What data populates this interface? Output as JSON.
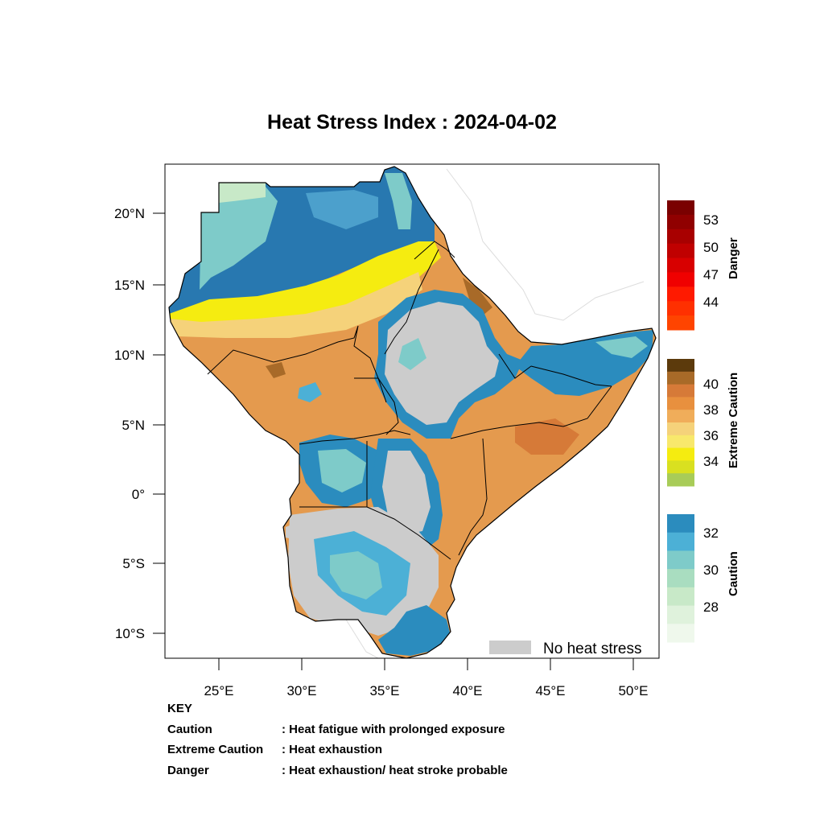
{
  "title": "Heat Stress Index : 2024-04-02",
  "axes": {
    "lat_ticks": [
      "20°N",
      "15°N",
      "10°N",
      "5°N",
      "0°",
      "5°S",
      "10°S"
    ],
    "lon_ticks": [
      "25°E",
      "30°E",
      "35°E",
      "40°E",
      "45°E",
      "50°E"
    ]
  },
  "legend": {
    "danger": {
      "title": "Danger",
      "labels": [
        "53",
        "50",
        "47",
        "44"
      ],
      "colors": [
        "#7a0000",
        "#900000",
        "#a80000",
        "#c00000",
        "#d80000",
        "#f00000",
        "#ff1a00",
        "#ff3000",
        "#ff4400"
      ]
    },
    "extreme": {
      "title": "Extreme Caution",
      "labels": [
        "40",
        "38",
        "36",
        "34"
      ],
      "colors": [
        "#5c3a0c",
        "#a86a28",
        "#d67a38",
        "#e8903e",
        "#f0ad5a",
        "#f5d27a",
        "#f8e86c",
        "#f5ec10",
        "#d9e020",
        "#a8cc58"
      ]
    },
    "caution": {
      "title": "Caution",
      "labels": [
        "32",
        "30",
        "28"
      ],
      "colors": [
        "#2b8cbe",
        "#4cb0d6",
        "#7ecbc9",
        "#a9ddc0",
        "#c8e9c8",
        "#dff2dc",
        "#eff8ec"
      ]
    },
    "no_heat_stress": {
      "label": "No heat stress",
      "color": "#cccccc"
    }
  },
  "key": {
    "heading": "KEY",
    "rows": [
      {
        "term": "Caution",
        "desc": ": Heat fatigue with prolonged exposure"
      },
      {
        "term": "Extreme Caution",
        "desc": " : Heat exhaustion"
      },
      {
        "term": "Danger",
        "desc": ": Heat exhaustion/ heat stroke probable"
      }
    ]
  }
}
